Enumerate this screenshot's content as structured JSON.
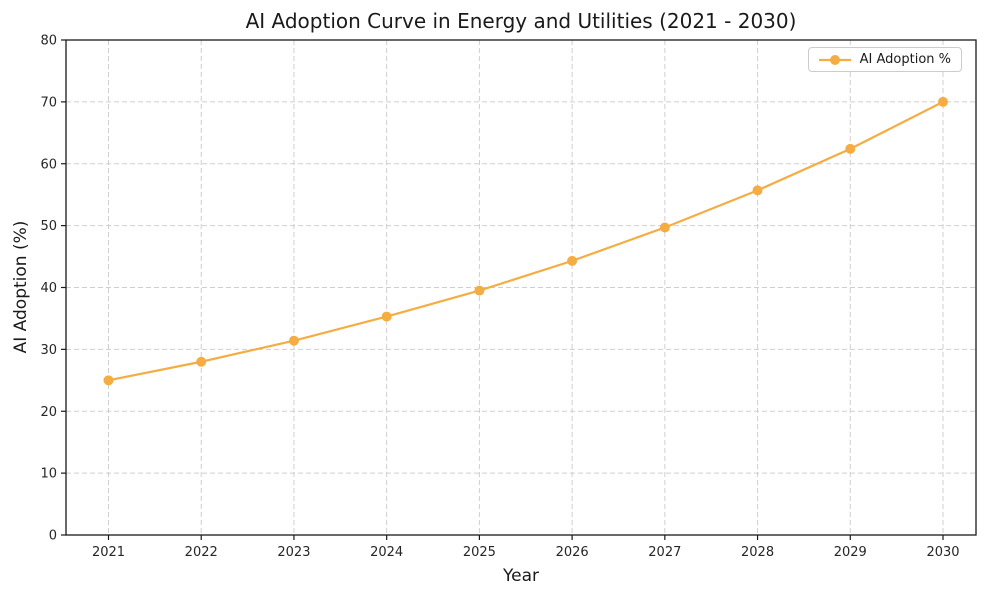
{
  "chart_data": {
    "type": "line",
    "title": "AI Adoption Curve in Energy and Utilities (2021 - 2030)",
    "xlabel": "Year",
    "ylabel": "AI Adoption (%)",
    "categories": [
      "2021",
      "2022",
      "2023",
      "2024",
      "2025",
      "2026",
      "2027",
      "2028",
      "2029",
      "2030"
    ],
    "series": [
      {
        "name": "AI Adoption %",
        "values": [
          25.0,
          28.0,
          31.4,
          35.3,
          39.5,
          44.3,
          49.7,
          55.7,
          62.4,
          70.0
        ],
        "marker": "circle"
      }
    ],
    "ylim": [
      0,
      80
    ],
    "yticks": [
      0,
      10,
      20,
      30,
      40,
      50,
      60,
      70,
      80
    ],
    "grid": true,
    "grid_style": "dashed",
    "legend": {
      "position": "upper-right",
      "entries": [
        "AI Adoption %"
      ]
    },
    "colors": {
      "line": "#F5AD43",
      "grid": "#CFCFCF",
      "axis": "#1A1A1A",
      "text": "#262626",
      "legend_border": "#CCCCCC",
      "background": "#FFFFFF"
    }
  }
}
